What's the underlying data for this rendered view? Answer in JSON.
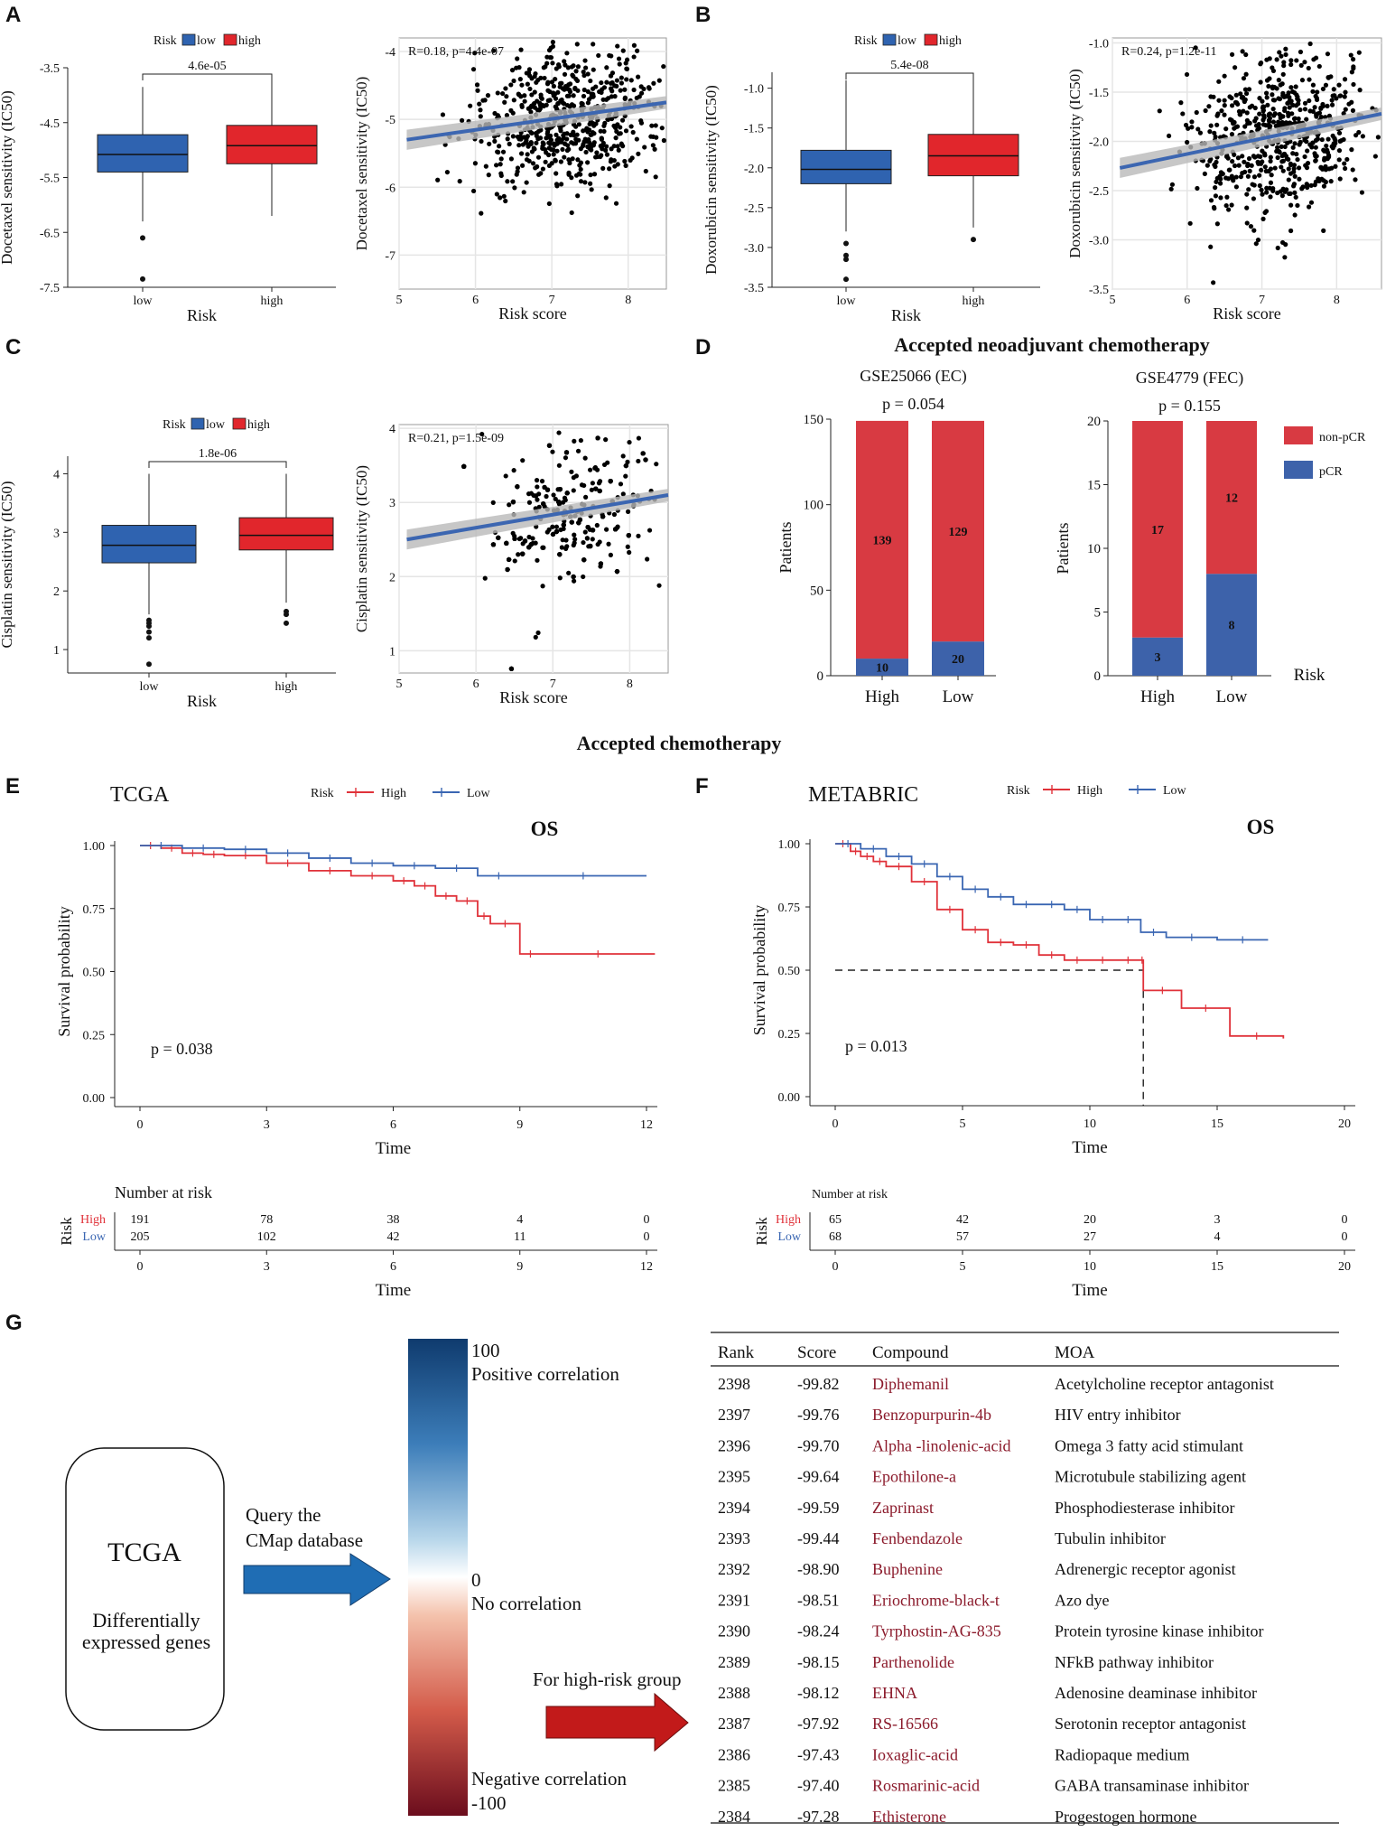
{
  "panel_letters": {
    "A": "A",
    "B": "B",
    "C": "C",
    "D": "D",
    "E": "E",
    "F": "F",
    "G": "G"
  },
  "legend_words": {
    "risk": "Risk",
    "low": "low",
    "high": "high"
  },
  "section_titles": {
    "neoadjuvant": "Accepted neoadjuvant chemotherapy",
    "chemo": "Accepted chemotherapy"
  },
  "chart_data": [
    {
      "id": "A_box",
      "type": "box",
      "title": "",
      "ylabel": "Docetaxel sensitivity (IC50)",
      "xlabel": "Risk",
      "categories": [
        "low",
        "high"
      ],
      "ylim": [
        -7.5,
        -3.5
      ],
      "yticks": [
        "-3.5",
        "-4.5",
        "-5.5",
        "-6.5",
        "-7.5"
      ],
      "pvalue": "4.6e-05",
      "series": [
        {
          "name": "low",
          "color": "#2f63b0",
          "whisker_low": -6.3,
          "q1": -5.4,
          "median": -5.08,
          "q3": -4.72,
          "whisker_high": -3.85,
          "outliers": [
            -6.6,
            -7.35
          ]
        },
        {
          "name": "high",
          "color": "#e1262c",
          "whisker_low": -6.2,
          "q1": -5.25,
          "median": -4.92,
          "q3": -4.55,
          "whisker_high": -3.65,
          "outliers": []
        }
      ]
    },
    {
      "id": "A_scatter",
      "type": "scatter",
      "ylabel": "Docetaxel sensitivity (IC50)",
      "xlabel": "Risk score",
      "annotation": "R=0.18, p=4.4e-07",
      "xlim": [
        5,
        8.5
      ],
      "ylim": [
        -7.5,
        -3.8
      ],
      "xticks": [
        "5",
        "6",
        "7",
        "8"
      ],
      "yticks": [
        "-4",
        "-5",
        "-6",
        "-7"
      ],
      "fit": {
        "x0": 5.1,
        "y0": -5.3,
        "x1": 8.5,
        "y1": -4.75
      },
      "cloud": {
        "cx": 7.2,
        "cy": -5.0,
        "sx": 0.6,
        "sy": 0.55,
        "n": 620,
        "seed": 11
      }
    },
    {
      "id": "B_box",
      "type": "box",
      "ylabel": "Doxorubicin sensitivity (IC50)",
      "xlabel": "Risk",
      "categories": [
        "low",
        "high"
      ],
      "ylim": [
        -3.5,
        -0.8
      ],
      "yticks": [
        "-1.0",
        "-1.5",
        "-2.0",
        "-2.5",
        "-3.0",
        "-3.5"
      ],
      "pvalue": "5.4e-08",
      "series": [
        {
          "name": "low",
          "color": "#2f63b0",
          "whisker_low": -2.8,
          "q1": -2.2,
          "median": -2.02,
          "q3": -1.78,
          "whisker_high": -0.9,
          "outliers": [
            -2.95,
            -3.1,
            -3.15,
            -3.4
          ]
        },
        {
          "name": "high",
          "color": "#e1262c",
          "whisker_low": -2.75,
          "q1": -2.1,
          "median": -1.85,
          "q3": -1.58,
          "whisker_high": -0.85,
          "outliers": [
            -2.9
          ]
        }
      ]
    },
    {
      "id": "B_scatter",
      "type": "scatter",
      "ylabel": "Doxorubicin sensitivity (IC50)",
      "xlabel": "Risk score",
      "annotation": "R=0.24, p=1.2e-11",
      "xlim": [
        5,
        8.6
      ],
      "ylim": [
        -3.5,
        -0.95
      ],
      "xticks": [
        "5",
        "6",
        "7",
        "8"
      ],
      "yticks": [
        "-1.0",
        "-1.5",
        "-2.0",
        "-2.5",
        "-3.0",
        "-3.5"
      ],
      "fit": {
        "x0": 5.1,
        "y0": -2.27,
        "x1": 8.6,
        "y1": -1.72
      },
      "cloud": {
        "cx": 7.25,
        "cy": -1.95,
        "sx": 0.6,
        "sy": 0.42,
        "n": 620,
        "seed": 23
      }
    },
    {
      "id": "C_box",
      "type": "box",
      "ylabel": "Cisplatin sensitivity (IC50)",
      "xlabel": "Risk",
      "categories": [
        "low",
        "high"
      ],
      "ylim": [
        0.6,
        4.3
      ],
      "yticks": [
        "1",
        "2",
        "3",
        "4"
      ],
      "pvalue": "1.8e-06",
      "series": [
        {
          "name": "low",
          "color": "#2f63b0",
          "whisker_low": 1.6,
          "q1": 2.48,
          "median": 2.78,
          "q3": 3.12,
          "whisker_high": 4.0,
          "outliers": [
            1.5,
            1.45,
            1.4,
            1.3,
            1.2,
            0.75
          ]
        },
        {
          "name": "high",
          "color": "#e1262c",
          "whisker_low": 1.8,
          "q1": 2.7,
          "median": 2.95,
          "q3": 3.25,
          "whisker_high": 4.0,
          "outliers": [
            1.65,
            1.6,
            1.45
          ]
        }
      ]
    },
    {
      "id": "C_scatter",
      "type": "scatter",
      "ylabel": "Cisplatin sensitivity (IC50)",
      "xlabel": "Risk score",
      "annotation": "R=0.21, p=1.5e-09",
      "xlim": [
        5,
        8.5
      ],
      "ylim": [
        0.7,
        4.05
      ],
      "xticks": [
        "5",
        "6",
        "7",
        "8"
      ],
      "yticks": [
        "1",
        "2",
        "3",
        "4"
      ],
      "fit": {
        "x0": 5.1,
        "y0": 2.5,
        "x1": 8.5,
        "y1": 3.1
      },
      "cloud": {
        "cx": 7.25,
        "cy": 2.85,
        "sx": 0.6,
        "sy": 0.5,
        "n": 620,
        "seed": 37
      }
    },
    {
      "id": "D_GSE25066",
      "type": "bar",
      "stacked": true,
      "title": "GSE25066 (EC)",
      "pvalue": "p = 0.054",
      "ylabel": "Patients",
      "categories": [
        "High",
        "Low"
      ],
      "ylim": [
        0,
        150
      ],
      "yticks": [
        "0",
        "50",
        "100",
        "150"
      ],
      "series": [
        {
          "name": "pCR",
          "color": "#3d62aa",
          "values": [
            10,
            20
          ]
        },
        {
          "name": "non-pCR",
          "color": "#d83a42",
          "values": [
            139,
            129
          ]
        }
      ]
    },
    {
      "id": "D_GSE4779",
      "type": "bar",
      "stacked": true,
      "title": "GSE4779 (FEC)",
      "pvalue": "p = 0.155",
      "ylabel": "Patients",
      "xlabel": "Risk",
      "categories": [
        "High",
        "Low"
      ],
      "ylim": [
        0,
        20
      ],
      "yticks": [
        "0",
        "5",
        "10",
        "15",
        "20"
      ],
      "legend": [
        "non-pCR",
        "pCR"
      ],
      "series": [
        {
          "name": "pCR",
          "color": "#3d62aa",
          "values": [
            3,
            8
          ]
        },
        {
          "name": "non-pCR",
          "color": "#d83a42",
          "values": [
            17,
            12
          ]
        }
      ]
    },
    {
      "id": "E_km",
      "type": "line",
      "title": "TCGA",
      "subtitle": "OS",
      "xlabel": "Time",
      "ylabel": "Survival probability",
      "pvalue": "p = 0.038",
      "legend_title": "Risk",
      "xlim": [
        0,
        12
      ],
      "ylim": [
        0,
        1
      ],
      "xticks": [
        "0",
        "3",
        "6",
        "9",
        "12"
      ],
      "yticks": [
        "0.00",
        "0.25",
        "0.50",
        "0.75",
        "1.00"
      ],
      "series": [
        {
          "name": "High",
          "color": "#e0323a",
          "x": [
            0,
            0.5,
            1,
            1.5,
            2,
            3,
            4,
            5,
            6,
            6.5,
            7,
            7.5,
            8,
            8.3,
            9,
            9.5,
            12.2
          ],
          "y": [
            1,
            0.99,
            0.97,
            0.965,
            0.96,
            0.93,
            0.9,
            0.88,
            0.86,
            0.84,
            0.8,
            0.78,
            0.72,
            0.69,
            0.57,
            0.57,
            0.57
          ]
        },
        {
          "name": "Low",
          "color": "#3a66b2",
          "x": [
            0,
            1,
            2,
            3,
            4,
            5,
            6,
            7,
            8,
            9,
            12
          ],
          "y": [
            1,
            0.99,
            0.985,
            0.97,
            0.95,
            0.93,
            0.92,
            0.91,
            0.88,
            0.88,
            0.88
          ]
        }
      ],
      "risk_table": {
        "title": "Number at risk",
        "label": "Risk",
        "rows": [
          {
            "name": "High",
            "values": [
              191,
              78,
              38,
              4,
              0
            ]
          },
          {
            "name": "Low",
            "values": [
              205,
              102,
              42,
              11,
              0
            ]
          }
        ]
      }
    },
    {
      "id": "F_km",
      "type": "line",
      "title": "METABRIC",
      "subtitle": "OS",
      "xlabel": "Time",
      "ylabel": "Survival probability",
      "pvalue": "p = 0.013",
      "legend_title": "Risk",
      "xlim": [
        0,
        20
      ],
      "ylim": [
        0,
        1
      ],
      "xticks": [
        "0",
        "5",
        "10",
        "15",
        "20"
      ],
      "yticks": [
        "0.00",
        "0.25",
        "0.50",
        "0.75",
        "1.00"
      ],
      "series": [
        {
          "name": "High",
          "color": "#e0323a",
          "x": [
            0,
            0.6,
            1,
            1.5,
            2,
            3,
            4,
            5,
            6,
            7,
            8,
            9,
            10,
            11,
            12,
            12.1,
            13.6,
            15.5,
            17.6
          ],
          "y": [
            1,
            0.97,
            0.95,
            0.93,
            0.91,
            0.85,
            0.74,
            0.66,
            0.61,
            0.6,
            0.56,
            0.54,
            0.54,
            0.54,
            0.54,
            0.42,
            0.35,
            0.24,
            0.23
          ]
        },
        {
          "name": "Low",
          "color": "#3a66b2",
          "x": [
            0,
            1,
            2,
            3,
            4,
            5,
            6,
            7,
            8,
            9,
            10,
            11,
            12,
            13,
            15,
            17
          ],
          "y": [
            1,
            0.98,
            0.95,
            0.92,
            0.87,
            0.82,
            0.79,
            0.76,
            0.76,
            0.74,
            0.7,
            0.7,
            0.65,
            0.63,
            0.62,
            0.62
          ]
        }
      ],
      "median_line": {
        "x": 12.1,
        "y": 0.5
      },
      "risk_table": {
        "title": "Number at risk",
        "label": "Risk",
        "rows": [
          {
            "name": "High",
            "values": [
              65,
              42,
              20,
              3,
              0
            ]
          },
          {
            "name": "Low",
            "values": [
              68,
              57,
              27,
              4,
              0
            ]
          }
        ]
      }
    }
  ],
  "panel_g": {
    "box_title": "TCGA",
    "box_sub1": "Differentially",
    "box_sub2": "expressed genes",
    "arrow1_l1": "Query the",
    "arrow1_l2": "CMap database",
    "arrow2": "For high-risk group",
    "scale_top_val": "100",
    "scale_top_lab": "Positive correlation",
    "scale_mid_val": "0",
    "scale_mid_lab": "No correlation",
    "scale_bot_lab": "Negative correlation",
    "scale_bot_val": "-100",
    "table": {
      "columns": [
        "Rank",
        "Score",
        "Compound",
        "MOA"
      ],
      "rows": [
        [
          "2398",
          "-99.82",
          "Diphemanil",
          "Acetylcholine receptor antagonist"
        ],
        [
          "2397",
          "-99.76",
          "Benzopurpurin-4b",
          "HIV entry inhibitor"
        ],
        [
          "2396",
          "-99.70",
          "Alpha -linolenic-acid",
          "Omega 3 fatty acid stimulant"
        ],
        [
          "2395",
          "-99.64",
          "Epothilone-a",
          "Microtubule stabilizing agent"
        ],
        [
          "2394",
          "-99.59",
          "Zaprinast",
          "Phosphodiesterase inhibitor"
        ],
        [
          "2393",
          "-99.44",
          "Fenbendazole",
          "Tubulin inhibitor"
        ],
        [
          "2392",
          "-98.90",
          "Buphenine",
          "Adrenergic receptor agonist"
        ],
        [
          "2391",
          "-98.51",
          "Eriochrome-black-t",
          "Azo dye"
        ],
        [
          "2390",
          "-98.24",
          "Tyrphostin-AG-835",
          "Protein tyrosine kinase inhibitor"
        ],
        [
          "2389",
          "-98.15",
          "Parthenolide",
          "NFkB pathway inhibitor"
        ],
        [
          "2388",
          "-98.12",
          "EHNA",
          "Adenosine deaminase inhibitor"
        ],
        [
          "2387",
          "-97.92",
          "RS-16566",
          "Serotonin receptor antagonist"
        ],
        [
          "2386",
          "-97.43",
          "Ioxaglic-acid",
          "Radiopaque medium"
        ],
        [
          "2385",
          "-97.40",
          "Rosmarinic-acid",
          "GABA transaminase inhibitor"
        ],
        [
          "2384",
          "-97.28",
          "Ethisterone",
          "Progestogen hormone"
        ]
      ]
    }
  }
}
